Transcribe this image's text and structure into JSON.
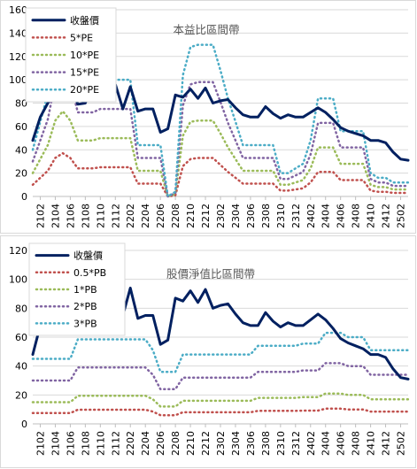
{
  "chart_data": [
    {
      "type": "line",
      "title": "本益比區間帶",
      "ylim": [
        0,
        160
      ],
      "y_ticks": [
        0,
        20,
        40,
        60,
        80,
        100,
        120,
        140,
        160
      ],
      "x_tick_labels": [
        "2102",
        "2104",
        "2106",
        "2108",
        "2110",
        "2112",
        "2202",
        "2204",
        "2206",
        "2208",
        "2210",
        "2212",
        "2302",
        "2304",
        "2306",
        "2308",
        "2310",
        "2312",
        "2402",
        "2404",
        "2406",
        "2408",
        "2410",
        "2412",
        "2502"
      ],
      "x_range": [
        2101,
        2503
      ],
      "grid": true,
      "legend_position": "top-left",
      "x": [
        2101,
        2102,
        2103,
        2104,
        2105,
        2106,
        2107,
        2108,
        2109,
        2110,
        2111,
        2112,
        2201,
        2202,
        2203,
        2204,
        2205,
        2206,
        2207,
        2208,
        2209,
        2210,
        2211,
        2212,
        2301,
        2302,
        2303,
        2304,
        2305,
        2306,
        2307,
        2308,
        2309,
        2310,
        2311,
        2312,
        2401,
        2402,
        2403,
        2404,
        2405,
        2406,
        2407,
        2408,
        2409,
        2410,
        2411,
        2412,
        2501,
        2502,
        2503
      ],
      "series": [
        {
          "name": "收盤價",
          "color": "#002060",
          "width": 3,
          "dash": "",
          "values": [
            48,
            68,
            80,
            88,
            88,
            96,
            79,
            80,
            97,
            98,
            97,
            96,
            75,
            94,
            73,
            75,
            75,
            55,
            58,
            87,
            85,
            92,
            84,
            93,
            80,
            82,
            83,
            76,
            70,
            68,
            68,
            77,
            71,
            67,
            70,
            68,
            68,
            72,
            76,
            72,
            66,
            59,
            56,
            54,
            52,
            48,
            48,
            46,
            38,
            32,
            31
          ]
        },
        {
          "name": "5*PE",
          "color": "#c0504d",
          "width": 2.5,
          "dash": "1 4",
          "values": [
            10,
            16,
            22,
            33,
            37,
            33,
            24,
            24,
            24,
            25,
            25,
            25,
            25,
            25,
            11,
            11,
            11,
            11,
            0,
            1,
            26,
            32,
            33,
            33,
            33,
            27,
            21,
            16,
            11,
            11,
            11,
            11,
            11,
            5,
            5,
            6,
            7,
            12,
            21,
            21,
            21,
            14,
            14,
            14,
            14,
            5,
            4,
            4,
            3,
            3,
            3
          ]
        },
        {
          "name": "10*PE",
          "color": "#9bbb59",
          "width": 2.5,
          "dash": "1 4",
          "values": [
            20,
            32,
            44,
            65,
            73,
            65,
            48,
            48,
            48,
            50,
            50,
            50,
            50,
            50,
            22,
            22,
            22,
            22,
            0,
            2,
            52,
            64,
            65,
            65,
            65,
            54,
            42,
            32,
            22,
            22,
            22,
            22,
            22,
            10,
            10,
            12,
            14,
            24,
            42,
            42,
            42,
            28,
            28,
            28,
            28,
            10,
            8,
            8,
            6,
            6,
            6
          ]
        },
        {
          "name": "15*PE",
          "color": "#8064a2",
          "width": 2.5,
          "dash": "1 4",
          "values": [
            30,
            48,
            66,
            98,
            110,
            98,
            72,
            72,
            72,
            75,
            75,
            75,
            75,
            75,
            33,
            33,
            33,
            33,
            0,
            3,
            78,
            96,
            98,
            98,
            98,
            81,
            63,
            48,
            33,
            33,
            33,
            33,
            33,
            15,
            15,
            18,
            21,
            36,
            63,
            63,
            63,
            42,
            42,
            42,
            42,
            15,
            12,
            12,
            9,
            9,
            9
          ]
        },
        {
          "name": "20*PE",
          "color": "#4bacc6",
          "width": 2.5,
          "dash": "1 4",
          "values": [
            40,
            64,
            88,
            130,
            146,
            130,
            96,
            96,
            96,
            100,
            100,
            100,
            100,
            100,
            44,
            44,
            44,
            44,
            0,
            4,
            104,
            128,
            130,
            130,
            130,
            108,
            84,
            64,
            44,
            44,
            44,
            44,
            44,
            20,
            20,
            24,
            28,
            48,
            84,
            84,
            84,
            56,
            56,
            56,
            56,
            20,
            16,
            16,
            12,
            12,
            12
          ]
        }
      ]
    },
    {
      "type": "line",
      "title": "股價淨值比區間帶",
      "ylim": [
        0,
        120
      ],
      "y_ticks": [
        0,
        20,
        40,
        60,
        80,
        100,
        120
      ],
      "x_tick_labels": [
        "2102",
        "2104",
        "2106",
        "2108",
        "2110",
        "2112",
        "2202",
        "2204",
        "2206",
        "2208",
        "2210",
        "2212",
        "2302",
        "2304",
        "2306",
        "2308",
        "2310",
        "2312",
        "2402",
        "2404",
        "2406",
        "2408",
        "2410",
        "2412",
        "2502"
      ],
      "x_range": [
        2101,
        2503
      ],
      "grid": true,
      "legend_position": "top-left",
      "x": [
        2101,
        2102,
        2103,
        2104,
        2105,
        2106,
        2107,
        2108,
        2109,
        2110,
        2111,
        2112,
        2201,
        2202,
        2203,
        2204,
        2205,
        2206,
        2207,
        2208,
        2209,
        2210,
        2211,
        2212,
        2301,
        2302,
        2303,
        2304,
        2305,
        2306,
        2307,
        2308,
        2309,
        2310,
        2311,
        2312,
        2401,
        2402,
        2403,
        2404,
        2405,
        2406,
        2407,
        2408,
        2409,
        2410,
        2411,
        2412,
        2501,
        2502,
        2503
      ],
      "series": [
        {
          "name": "收盤價",
          "color": "#002060",
          "width": 3,
          "dash": "",
          "values": [
            48,
            68,
            80,
            88,
            88,
            96,
            79,
            80,
            97,
            98,
            97,
            96,
            75,
            94,
            73,
            75,
            75,
            55,
            58,
            87,
            85,
            92,
            84,
            93,
            80,
            82,
            83,
            76,
            70,
            68,
            68,
            77,
            71,
            67,
            70,
            68,
            68,
            72,
            76,
            72,
            66,
            59,
            56,
            54,
            52,
            48,
            48,
            46,
            38,
            32,
            31
          ]
        },
        {
          "name": "0.5*PB",
          "color": "#c0504d",
          "width": 2.5,
          "dash": "1 4",
          "values": [
            7.5,
            7.5,
            7.5,
            7.5,
            7.5,
            7.5,
            9.8,
            9.8,
            9.8,
            9.8,
            9.8,
            9.8,
            9.8,
            9.8,
            9.8,
            9.8,
            8.5,
            6,
            6,
            6,
            8,
            8,
            8,
            8,
            8,
            8,
            8,
            8,
            8,
            8,
            9,
            9,
            9,
            9,
            9,
            9,
            9.2,
            9.2,
            9.2,
            10.5,
            10.5,
            10.5,
            10,
            10,
            10,
            8.5,
            8.5,
            8.5,
            8.5,
            8.5,
            8.5
          ]
        },
        {
          "name": "1*PB",
          "color": "#9bbb59",
          "width": 2.5,
          "dash": "1 4",
          "values": [
            15,
            15,
            15,
            15,
            15,
            15,
            19.5,
            19.5,
            19.5,
            19.5,
            19.5,
            19.5,
            19.5,
            19.5,
            19.5,
            19.5,
            17,
            12,
            12,
            12,
            16,
            16,
            16,
            16,
            16,
            16,
            16,
            16,
            16,
            16,
            18,
            18,
            18,
            18,
            18,
            18,
            18.5,
            18.5,
            18.5,
            21,
            21,
            21,
            20,
            20,
            20,
            17,
            17,
            17,
            17,
            17,
            17
          ]
        },
        {
          "name": "2*PB",
          "color": "#8064a2",
          "width": 2.5,
          "dash": "1 4",
          "values": [
            30,
            30,
            30,
            30,
            30,
            30,
            39,
            39,
            39,
            39,
            39,
            39,
            39,
            39,
            39,
            39,
            34,
            24,
            24,
            24,
            32,
            32,
            32,
            32,
            32,
            32,
            32,
            32,
            32,
            32,
            36,
            36,
            36,
            36,
            36,
            36,
            37,
            37,
            37,
            42,
            42,
            42,
            40,
            40,
            40,
            34,
            34,
            34,
            34,
            34,
            34
          ]
        },
        {
          "name": "3*PB",
          "color": "#4bacc6",
          "width": 2.5,
          "dash": "1 4",
          "values": [
            45,
            45,
            45,
            45,
            45,
            45,
            58.5,
            58.5,
            58.5,
            58.5,
            58.5,
            58.5,
            58.5,
            58.5,
            58.5,
            58.5,
            51,
            36,
            36,
            36,
            48,
            48,
            48,
            48,
            48,
            48,
            48,
            48,
            48,
            48,
            54,
            54,
            54,
            54,
            54,
            54,
            55.5,
            55.5,
            55.5,
            63,
            63,
            63,
            60,
            60,
            60,
            51,
            51,
            51,
            51,
            51,
            51
          ]
        }
      ]
    }
  ]
}
